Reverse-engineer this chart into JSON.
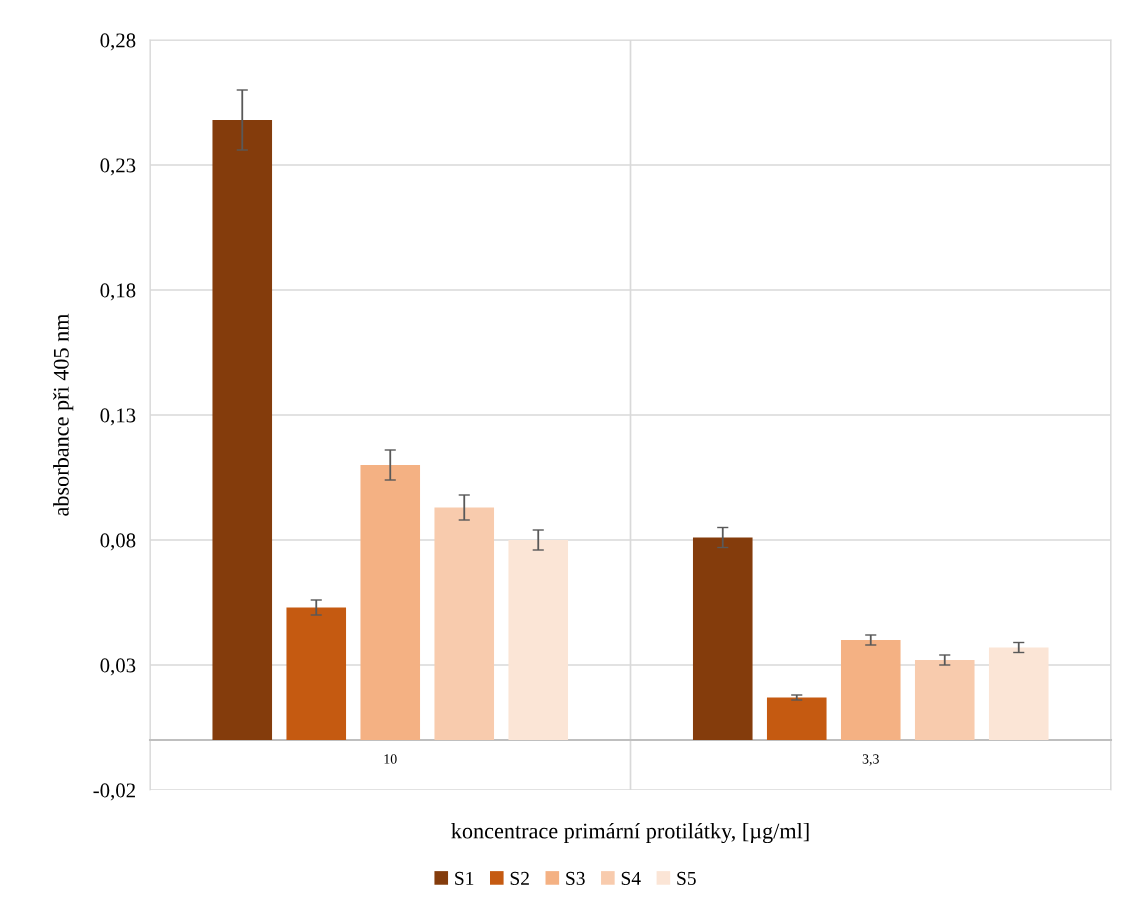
{
  "chart_data": {
    "type": "bar",
    "xlabel": "koncentrace primární protilátky, [µg/ml]",
    "ylabel": "absorbance při 405 nm",
    "categories": [
      "10",
      "3,3"
    ],
    "series": [
      {
        "name": "S1",
        "color": "#843c0c",
        "values": [
          0.248,
          0.081
        ],
        "errors": [
          0.012,
          0.004
        ]
      },
      {
        "name": "S2",
        "color": "#c55a11",
        "values": [
          0.053,
          0.017
        ],
        "errors": [
          0.003,
          0.001
        ]
      },
      {
        "name": "S3",
        "color": "#f4b183",
        "values": [
          0.11,
          0.04
        ],
        "errors": [
          0.006,
          0.002
        ]
      },
      {
        "name": "S4",
        "color": "#f8cbad",
        "values": [
          0.093,
          0.032
        ],
        "errors": [
          0.005,
          0.002
        ]
      },
      {
        "name": "S5",
        "color": "#fbe5d6",
        "values": [
          0.08,
          0.037
        ],
        "errors": [
          0.004,
          0.002
        ]
      }
    ],
    "ylim": [
      -0.02,
      0.28
    ],
    "yticks": [
      {
        "value": -0.02,
        "label": "-0,02"
      },
      {
        "value": 0.03,
        "label": "0,03"
      },
      {
        "value": 0.08,
        "label": "0,08"
      },
      {
        "value": 0.13,
        "label": "0,13"
      },
      {
        "value": 0.18,
        "label": "0,18"
      },
      {
        "value": 0.23,
        "label": "0,23"
      },
      {
        "value": 0.28,
        "label": "0,28"
      }
    ],
    "grid": true,
    "legend": "bottom"
  }
}
